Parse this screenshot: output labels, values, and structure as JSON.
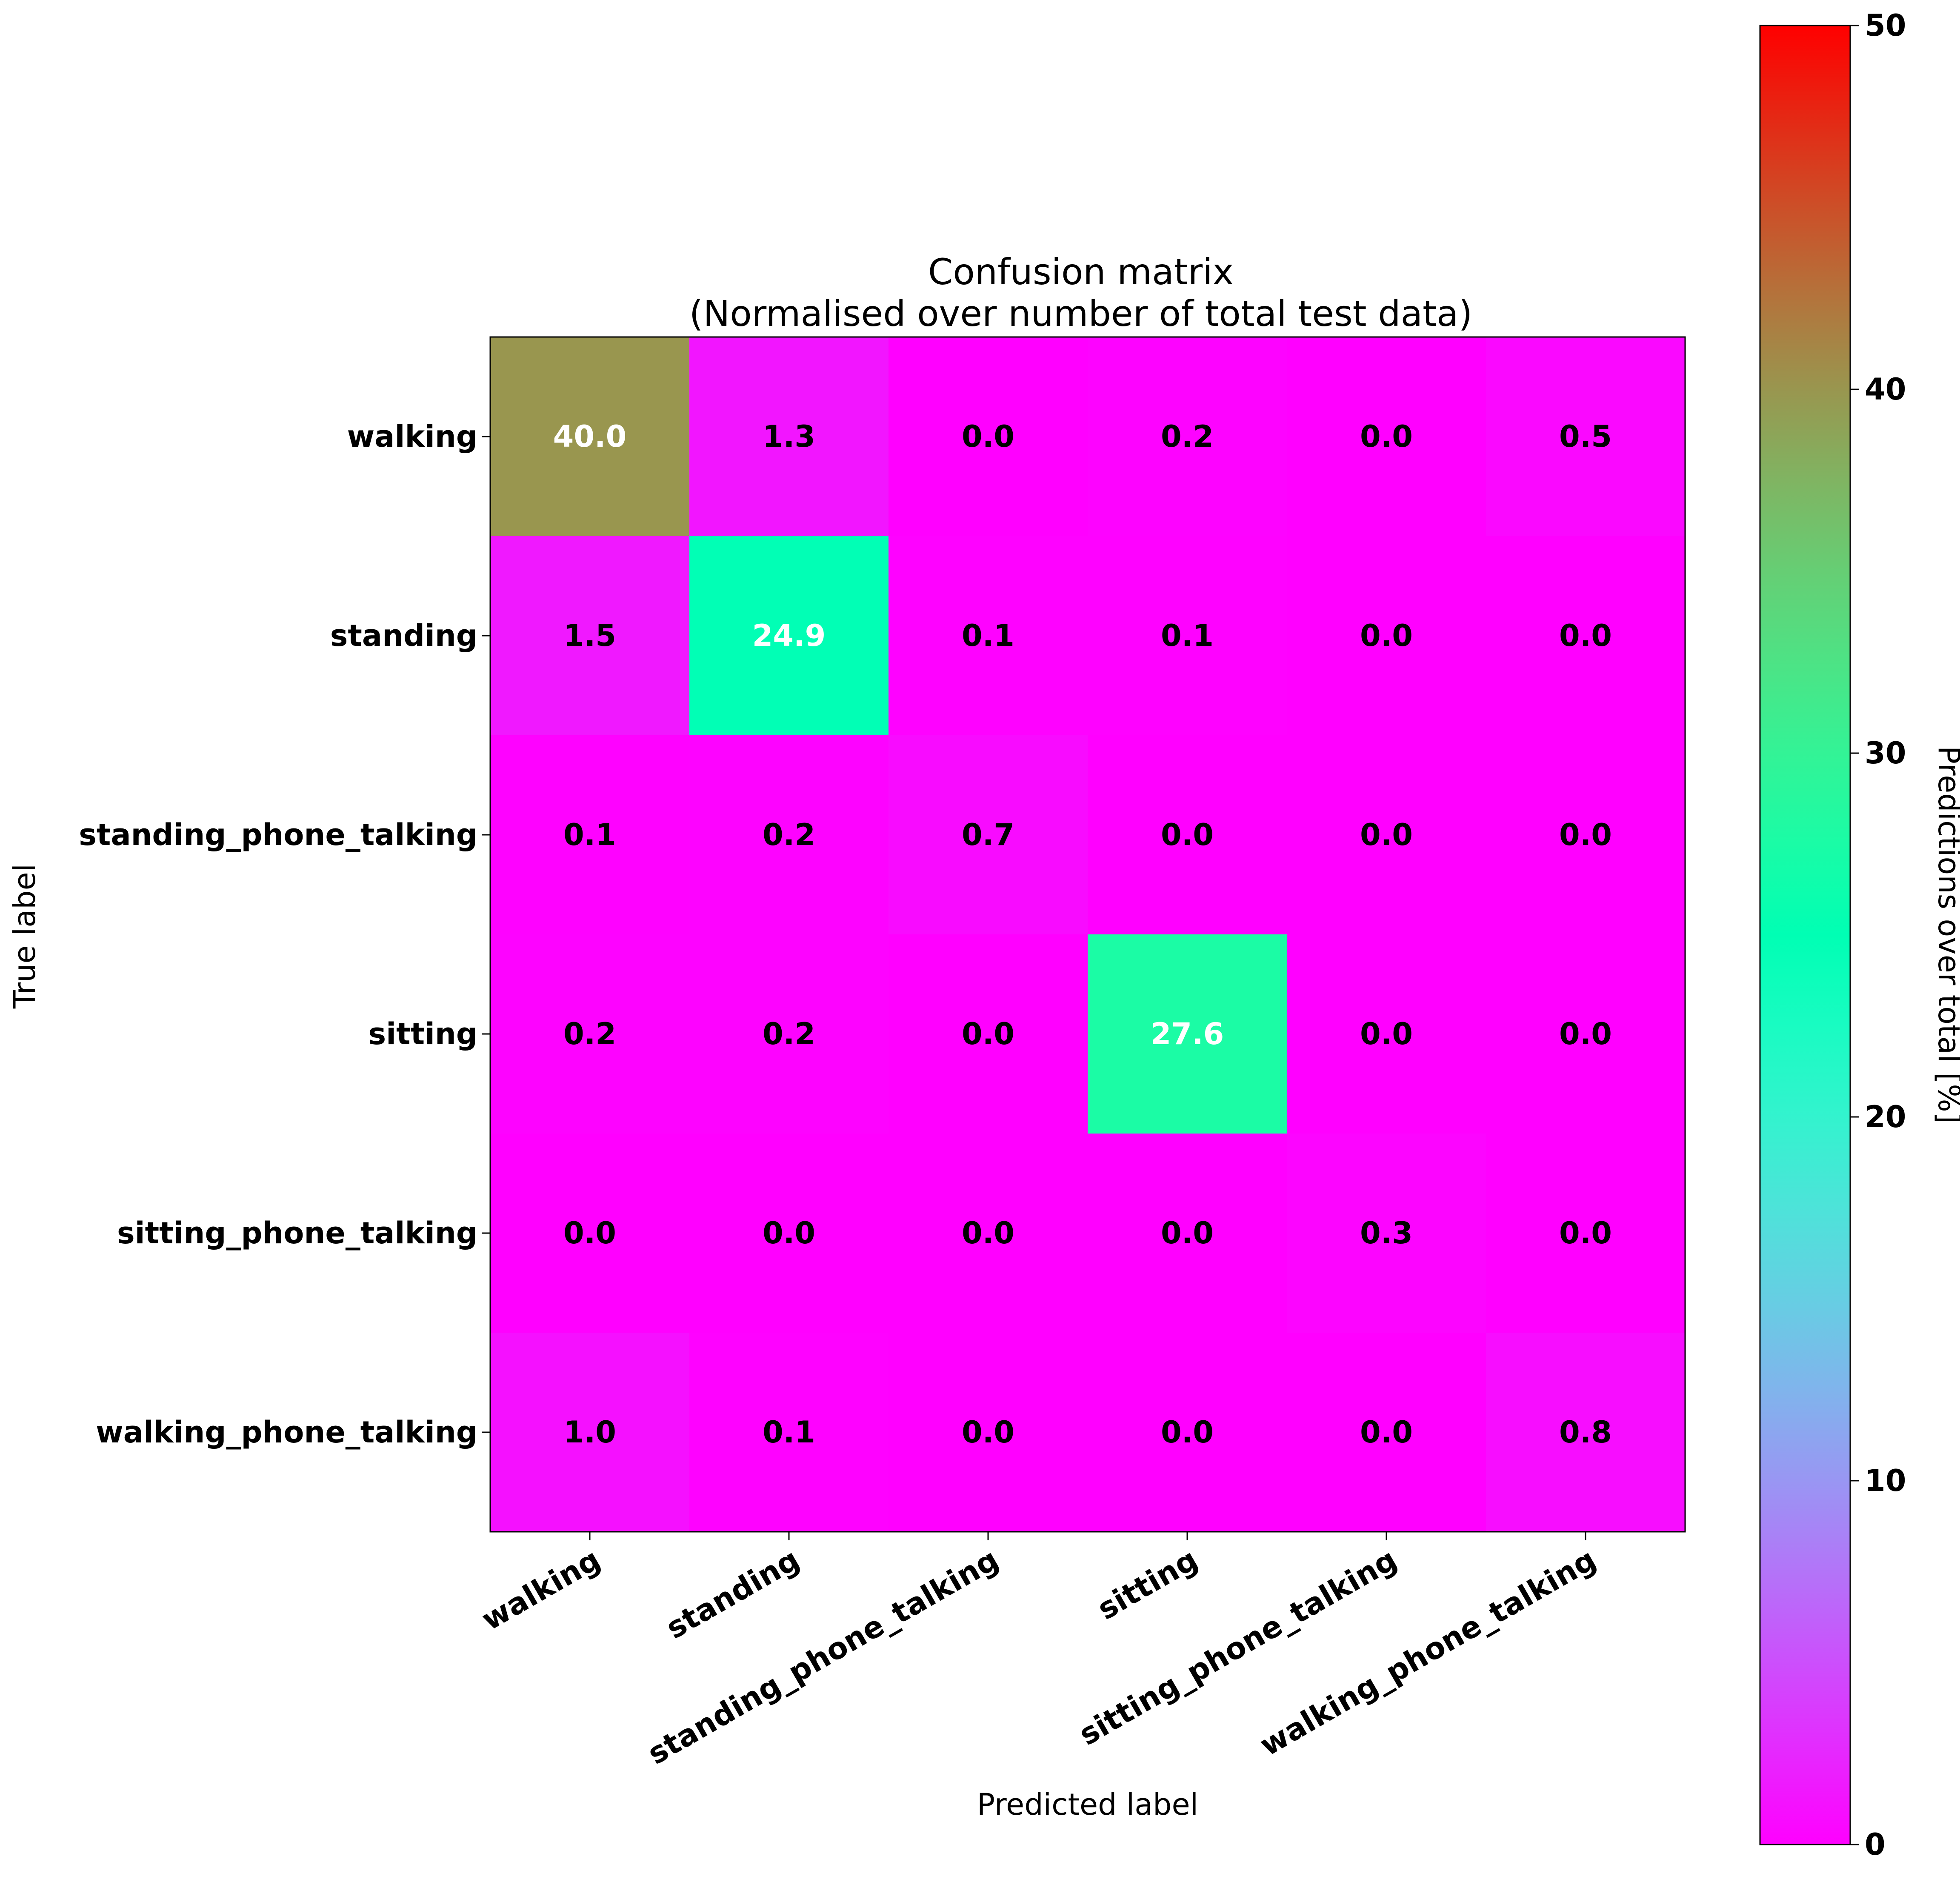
{
  "chart_data": {
    "type": "heatmap",
    "title": [
      "Confusion matrix",
      "(Normalised over number of total test data)"
    ],
    "xlabel": "Predicted label",
    "ylabel": "True label",
    "x_categories": [
      "walking",
      "standing",
      "standing_phone_talking",
      "sitting",
      "sitting_phone_talking",
      "walking_phone_talking"
    ],
    "y_categories": [
      "walking",
      "standing",
      "standing_phone_talking",
      "sitting",
      "sitting_phone_talking",
      "walking_phone_talking"
    ],
    "values": [
      [
        40.0,
        1.3,
        0.0,
        0.2,
        0.0,
        0.5
      ],
      [
        1.5,
        24.9,
        0.1,
        0.1,
        0.0,
        0.0
      ],
      [
        0.1,
        0.2,
        0.7,
        0.0,
        0.0,
        0.0
      ],
      [
        0.2,
        0.2,
        0.0,
        27.6,
        0.0,
        0.0
      ],
      [
        0.0,
        0.0,
        0.0,
        0.0,
        0.3,
        0.0
      ],
      [
        1.0,
        0.1,
        0.0,
        0.0,
        0.0,
        0.8
      ]
    ],
    "value_format": "0.0",
    "colormap": "rainbow",
    "colorbar": {
      "label": "Predictions over total [%]",
      "range": [
        0,
        50
      ],
      "ticks": [
        0,
        10,
        20,
        30,
        40,
        50
      ]
    },
    "text_colors": {
      "dark": "#000000",
      "light": "#ffffff"
    }
  }
}
